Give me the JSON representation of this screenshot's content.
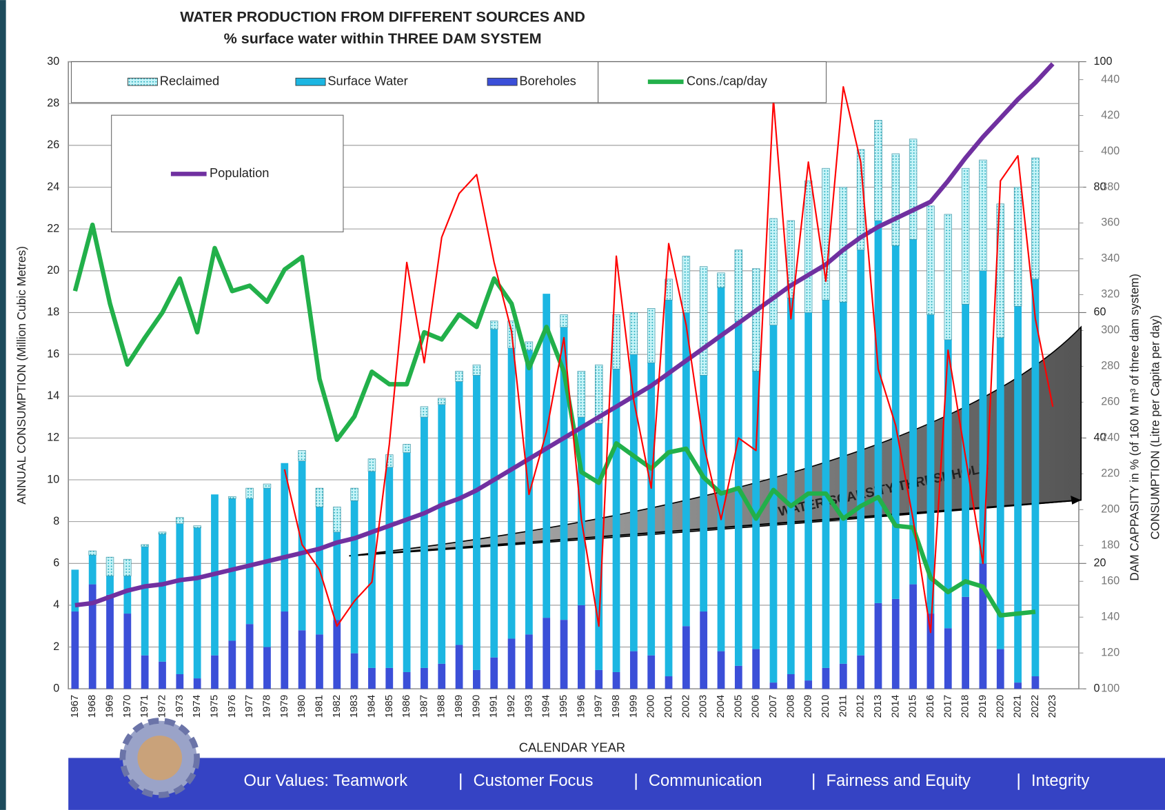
{
  "chart_data": {
    "type": "combo",
    "title": [
      "WATER PRODUCTION FROM DIFFERENT SOURCES AND",
      "% surface water within THREE DAM SYSTEM"
    ],
    "y_label": "ANNUAL CONSUMPTION (Million Cubic Metres)",
    "x_label": "CALENDAR YEAR",
    "y3_label": "DAM CAPPASITY in % (of 160 M m³ of three dam system)",
    "y2_label": "CONSUMPTION (Litre per Capita per day)",
    "annotation": "WATER SCARSITY THRESHHOLD",
    "categories": [
      "1967",
      "1968",
      "1969",
      "1970",
      "1971",
      "1972",
      "1973",
      "1974",
      "1975",
      "1976",
      "1977",
      "1978",
      "1979",
      "1980",
      "1981",
      "1982",
      "1983",
      "1984",
      "1985",
      "1986",
      "1987",
      "1988",
      "1989",
      "1990",
      "1991",
      "1992",
      "1993",
      "1994",
      "1995",
      "1996",
      "1997",
      "1998",
      "1999",
      "2000",
      "2001",
      "2002",
      "2003",
      "2004",
      "2005",
      "2006",
      "2007",
      "2008",
      "2009",
      "2010",
      "2011",
      "2012",
      "2013",
      "2014",
      "2015",
      "2016",
      "2017",
      "2018",
      "2019",
      "2020",
      "2021",
      "2022",
      "2023"
    ],
    "ylim": [
      0,
      30
    ],
    "yticks": [
      0,
      2,
      4,
      6,
      8,
      10,
      12,
      14,
      16,
      18,
      20,
      22,
      24,
      26,
      28,
      30
    ],
    "y2lim": [
      100,
      450
    ],
    "y2ticks": [
      100,
      120,
      140,
      160,
      180,
      200,
      220,
      240,
      260,
      280,
      300,
      320,
      340,
      360,
      380,
      400,
      420,
      440
    ],
    "y3lim": [
      0,
      100
    ],
    "y3ticks": [
      0,
      20,
      40,
      60,
      80,
      100
    ],
    "grid": true,
    "series": [
      {
        "name": "Boreholes",
        "type": "bar",
        "axis": "y",
        "color": "#3b4fd8",
        "values": [
          3.7,
          5.0,
          4.5,
          3.6,
          1.6,
          1.3,
          0.7,
          0.5,
          1.6,
          2.3,
          3.1,
          2.0,
          3.7,
          2.8,
          2.6,
          3.3,
          1.7,
          1.0,
          1.0,
          0.8,
          1.0,
          1.2,
          2.1,
          0.9,
          1.5,
          2.4,
          2.6,
          3.4,
          3.3,
          4.0,
          0.9,
          0.8,
          1.8,
          1.6,
          0.6,
          3.0,
          3.7,
          1.8,
          1.1,
          1.9,
          0.3,
          0.7,
          0.4,
          1.0,
          1.2,
          1.6,
          4.1,
          4.3,
          5.0,
          3.6,
          2.9,
          4.4,
          6.0,
          1.9,
          0.3,
          0.6,
          null
        ]
      },
      {
        "name": "Surface Water",
        "type": "bar",
        "axis": "y",
        "color": "#1cb6e2",
        "values": [
          2.0,
          1.4,
          0.9,
          1.8,
          5.2,
          6.1,
          7.2,
          7.2,
          7.7,
          6.8,
          6.0,
          7.6,
          7.1,
          8.1,
          6.1,
          4.2,
          7.3,
          9.4,
          9.6,
          10.5,
          12.0,
          12.4,
          12.6,
          14.1,
          15.7,
          13.9,
          13.6,
          15.5,
          14.0,
          9.0,
          11.8,
          14.5,
          14.2,
          14.0,
          18.0,
          15.0,
          11.3,
          17.4,
          16.5,
          13.3,
          17.1,
          18.0,
          17.6,
          17.6,
          17.3,
          19.4,
          18.3,
          16.9,
          16.5,
          14.3,
          13.8,
          14.0,
          14.0,
          14.9,
          18.0,
          19.0,
          null
        ]
      },
      {
        "name": "Reclaimed",
        "type": "bar",
        "axis": "y",
        "color": "#b9f1f6",
        "values": [
          0,
          0.2,
          0.9,
          0.8,
          0.1,
          0.1,
          0.3,
          0.1,
          0,
          0.1,
          0.5,
          0.2,
          0,
          0.5,
          0.9,
          1.2,
          0.6,
          0.6,
          0.6,
          0.4,
          0.5,
          0.3,
          0.5,
          0.5,
          0.4,
          1.3,
          0.4,
          0,
          0.6,
          2.2,
          2.8,
          2.6,
          2.0,
          2.6,
          1.0,
          2.7,
          5.2,
          0.7,
          3.4,
          4.9,
          5.1,
          3.7,
          6.3,
          6.3,
          5.5,
          4.8,
          4.8,
          4.4,
          4.8,
          5.2,
          6.0,
          6.5,
          5.3,
          6.4,
          5.7,
          5.8,
          null
        ]
      },
      {
        "name": "Cons./cap/day",
        "type": "line",
        "axis": "y2",
        "color": "#22b04a",
        "values": [
          322,
          359,
          315,
          281,
          296,
          310,
          329,
          299,
          346,
          322,
          325,
          316,
          334,
          341,
          273,
          239,
          252,
          277,
          270,
          270,
          299,
          295,
          309,
          302,
          329,
          315,
          279,
          302,
          277,
          221,
          215,
          237,
          230,
          223,
          232,
          234,
          218,
          209,
          212,
          195,
          211,
          202,
          209,
          209,
          195,
          202,
          207,
          191,
          190,
          162,
          154,
          160,
          157,
          141,
          142,
          143,
          null
        ]
      },
      {
        "name": "Population",
        "type": "line",
        "axis": "y",
        "color": "#7030a0",
        "values": [
          4.0,
          4.1,
          4.4,
          4.7,
          4.9,
          5.0,
          5.2,
          5.3,
          5.5,
          5.7,
          5.9,
          6.1,
          6.3,
          6.5,
          6.7,
          7.0,
          7.2,
          7.5,
          7.8,
          8.1,
          8.4,
          8.8,
          9.1,
          9.5,
          10.0,
          10.5,
          11.0,
          11.5,
          12.0,
          12.5,
          13.0,
          13.5,
          14.0,
          14.5,
          15.1,
          15.7,
          16.3,
          16.9,
          17.5,
          18.1,
          18.7,
          19.3,
          19.8,
          20.3,
          21.0,
          21.6,
          22.1,
          22.5,
          22.9,
          23.3,
          24.3,
          25.4,
          26.4,
          27.3,
          28.2,
          29.0,
          29.9
        ]
      },
      {
        "name": "Dam capacity",
        "type": "line",
        "axis": "y3",
        "color": "#ff0000",
        "values": [
          null,
          null,
          null,
          null,
          null,
          null,
          null,
          null,
          null,
          null,
          null,
          null,
          35,
          23,
          19,
          10,
          14,
          17,
          39,
          68,
          52,
          72,
          79,
          82,
          68,
          57,
          31,
          41,
          56,
          27,
          10,
          69,
          46,
          32,
          71,
          58,
          39,
          27,
          40,
          38,
          94,
          59,
          84,
          65,
          96,
          84,
          51,
          42,
          27,
          9,
          54,
          37,
          20,
          81,
          85,
          59,
          45
        ]
      }
    ]
  },
  "footer": {
    "values": [
      "Our Values: Teamwork",
      "Customer Focus",
      "Communication",
      "Fairness and Equity",
      "Integrity"
    ]
  }
}
